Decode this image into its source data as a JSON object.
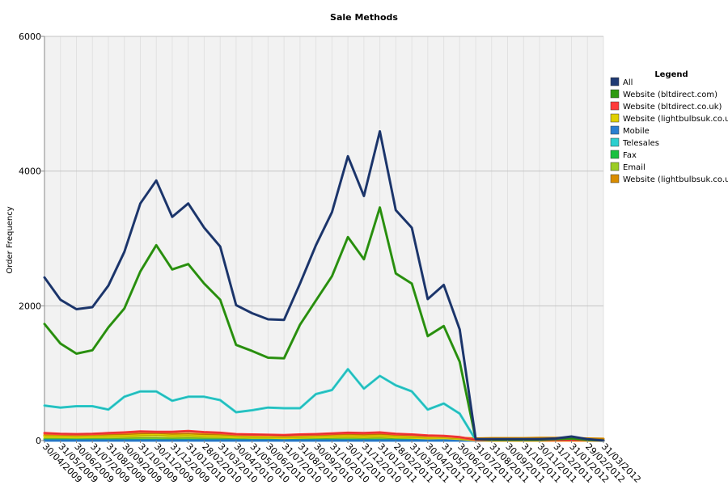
{
  "chart_data": {
    "type": "line",
    "title": "Sale Methods",
    "xlabel": "",
    "ylabel": "Order Frequency",
    "ylim": [
      0,
      6000
    ],
    "yticks": [
      "0",
      "2000",
      "4000",
      "6000"
    ],
    "grid": true,
    "legend_title": "Legend",
    "legend_position": "right",
    "categories": [
      "30/04/2009",
      "31/05/2009",
      "30/06/2009",
      "31/07/2009",
      "31/08/2009",
      "30/09/2009",
      "31/10/2009",
      "30/11/2009",
      "31/12/2009",
      "31/01/2010",
      "28/02/2010",
      "31/03/2010",
      "30/04/2010",
      "31/05/2010",
      "30/06/2010",
      "31/07/2010",
      "31/08/2010",
      "30/09/2010",
      "31/10/2010",
      "30/11/2010",
      "31/12/2010",
      "31/01/2011",
      "28/02/2011",
      "31/03/2011",
      "30/04/2011",
      "31/05/2011",
      "30/06/2011",
      "31/07/2011",
      "31/08/2011",
      "30/09/2011",
      "31/10/2011",
      "30/11/2011",
      "31/12/2011",
      "31/01/2012",
      "29/02/2012",
      "31/03/2012"
    ],
    "series": [
      {
        "name": "All",
        "color": "#1f3a73",
        "values": [
          2420,
          2090,
          1950,
          1980,
          2300,
          2800,
          3520,
          3860,
          3320,
          3520,
          3160,
          2880,
          2010,
          1890,
          1800,
          1790,
          2330,
          2900,
          3390,
          4220,
          3630,
          4590,
          3420,
          3160,
          2100,
          2310,
          1650,
          20,
          20,
          20,
          20,
          20,
          30,
          60,
          20,
          0
        ]
      },
      {
        "name": "Website (bltdirect.com)",
        "color": "#2e9a12",
        "values": [
          1730,
          1440,
          1290,
          1340,
          1680,
          1960,
          2510,
          2900,
          2540,
          2620,
          2330,
          2090,
          1420,
          1330,
          1230,
          1220,
          1720,
          2080,
          2440,
          3020,
          2690,
          3460,
          2480,
          2330,
          1550,
          1700,
          1170,
          20,
          10,
          10,
          10,
          10,
          20,
          30,
          10,
          0
        ]
      },
      {
        "name": "Website (bltdirect.co.uk)",
        "color": "#ff3a3a",
        "values": [
          110,
          100,
          95,
          100,
          110,
          120,
          135,
          130,
          130,
          140,
          125,
          115,
          95,
          90,
          85,
          80,
          90,
          95,
          105,
          115,
          110,
          120,
          100,
          90,
          75,
          70,
          50,
          10,
          5,
          5,
          5,
          5,
          5,
          5,
          5,
          0
        ]
      },
      {
        "name": "Website (lightbulbsuk.co.uk)",
        "color": "#e0d000",
        "values": [
          60,
          55,
          50,
          55,
          60,
          65,
          75,
          80,
          70,
          75,
          65,
          60,
          50,
          45,
          45,
          40,
          45,
          50,
          55,
          60,
          55,
          65,
          50,
          45,
          35,
          40,
          25,
          5,
          0,
          0,
          0,
          0,
          0,
          0,
          0,
          0
        ]
      },
      {
        "name": "Mobile",
        "color": "#2a7fd0",
        "values": [
          0,
          0,
          0,
          0,
          0,
          0,
          0,
          0,
          0,
          0,
          0,
          0,
          0,
          0,
          0,
          0,
          0,
          0,
          0,
          0,
          0,
          0,
          0,
          0,
          0,
          0,
          0,
          0,
          0,
          0,
          0,
          0,
          0,
          0,
          0,
          0
        ]
      },
      {
        "name": "Telesales",
        "color": "#2ccfcf",
        "values": [
          520,
          490,
          510,
          510,
          460,
          650,
          730,
          730,
          590,
          650,
          650,
          600,
          420,
          450,
          490,
          480,
          480,
          690,
          750,
          1060,
          770,
          960,
          820,
          730,
          460,
          550,
          400,
          10,
          10,
          10,
          10,
          10,
          10,
          20,
          10,
          0
        ]
      },
      {
        "name": "Fax",
        "color": "#19c140",
        "values": [
          10,
          10,
          10,
          10,
          10,
          10,
          10,
          10,
          10,
          10,
          10,
          10,
          10,
          10,
          10,
          10,
          10,
          10,
          10,
          10,
          10,
          10,
          10,
          10,
          10,
          10,
          10,
          0,
          0,
          0,
          0,
          0,
          0,
          0,
          0,
          0
        ]
      },
      {
        "name": "Email",
        "color": "#9acd24",
        "values": [
          30,
          30,
          25,
          30,
          30,
          35,
          40,
          40,
          35,
          40,
          35,
          35,
          30,
          25,
          25,
          25,
          30,
          30,
          35,
          40,
          35,
          40,
          30,
          30,
          25,
          25,
          20,
          5,
          5,
          5,
          5,
          5,
          5,
          5,
          5,
          0
        ]
      },
      {
        "name": "Website (lightbulbsuk.co.u",
        "color": "#d98c00",
        "values": [
          80,
          75,
          70,
          75,
          85,
          90,
          100,
          105,
          95,
          100,
          90,
          85,
          70,
          65,
          60,
          60,
          70,
          75,
          85,
          95,
          85,
          95,
          80,
          70,
          55,
          55,
          40,
          30,
          35,
          35,
          35,
          40,
          40,
          40,
          30,
          25
        ]
      }
    ]
  }
}
